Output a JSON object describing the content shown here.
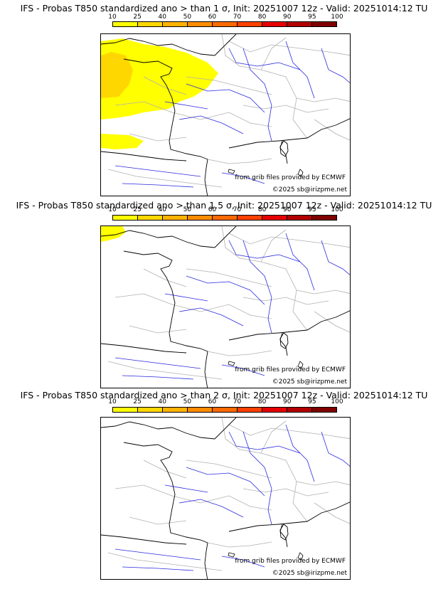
{
  "colorbar": {
    "ticks": [
      "10",
      "25",
      "40",
      "50",
      "60",
      "70",
      "80",
      "90",
      "95",
      "100"
    ],
    "colors": [
      "#ffff00",
      "#ffd700",
      "#ffb300",
      "#ff8c00",
      "#ff6a00",
      "#ff4000",
      "#e60000",
      "#b30000",
      "#800000"
    ]
  },
  "credits": {
    "source": "from grib files provided by ECMWF",
    "copyright": "©2025 sb@irizpme.net"
  },
  "panels": [
    {
      "title": "IFS - Probas T850  standardized ano > than 1 σ, Init: 20251007 12z - Valid: 20251014:12 TU",
      "shading": "large"
    },
    {
      "title": "IFS - Probas T850  standardized ano > than 1.5 σ, Init: 20251007 12z - Valid: 20251014:12 TU",
      "shading": "small"
    },
    {
      "title": "IFS - Probas T850  standardized ano > than 2 σ, Init: 20251007 12z - Valid: 20251014:12 TU",
      "shading": "none"
    }
  ]
}
